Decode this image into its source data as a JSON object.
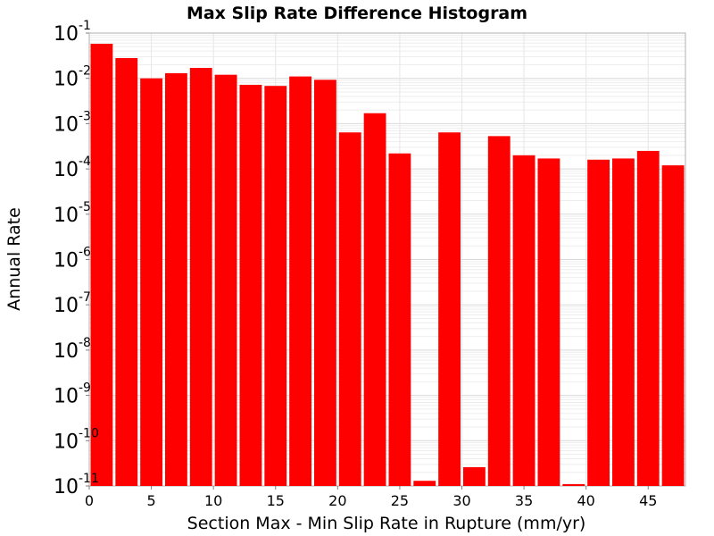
{
  "chart_data": {
    "type": "bar",
    "title": "Max Slip Rate Difference Histogram",
    "xlabel": "Section Max - Min Slip Rate in Rupture (mm/yr)",
    "ylabel": "Annual Rate",
    "yscale": "log",
    "xlim": [
      0,
      48
    ],
    "ylim": [
      1e-11,
      0.1
    ],
    "bin_width": 2,
    "grid": true,
    "bar_color": "#ff0000",
    "x_ticks": [
      0,
      5,
      10,
      15,
      20,
      25,
      30,
      35,
      40,
      45
    ],
    "y_ticks": [
      {
        "base": "10",
        "exp": "-1"
      },
      {
        "base": "10",
        "exp": "-2"
      },
      {
        "base": "10",
        "exp": "-3"
      },
      {
        "base": "10",
        "exp": "-4"
      },
      {
        "base": "10",
        "exp": "-5"
      },
      {
        "base": "10",
        "exp": "-6"
      },
      {
        "base": "10",
        "exp": "-7"
      },
      {
        "base": "10",
        "exp": "-8"
      },
      {
        "base": "10",
        "exp": "-9"
      },
      {
        "base": "10",
        "exp": "-10"
      },
      {
        "base": "10",
        "exp": "-11"
      }
    ],
    "x": [
      1,
      3,
      5,
      7,
      9,
      11,
      13,
      15,
      17,
      19,
      21,
      23,
      25,
      27,
      29,
      31,
      33,
      35,
      37,
      39,
      41,
      43,
      45,
      47
    ],
    "values": [
      0.058,
      0.028,
      0.01,
      0.013,
      0.017,
      0.012,
      0.0072,
      0.0068,
      0.011,
      0.0093,
      0.00064,
      0.0017,
      0.00022,
      1.3e-11,
      0.00064,
      2.6e-11,
      0.00053,
      0.0002,
      0.00017,
      1.1e-11,
      0.00016,
      0.00017,
      0.00025,
      0.00012
    ]
  }
}
